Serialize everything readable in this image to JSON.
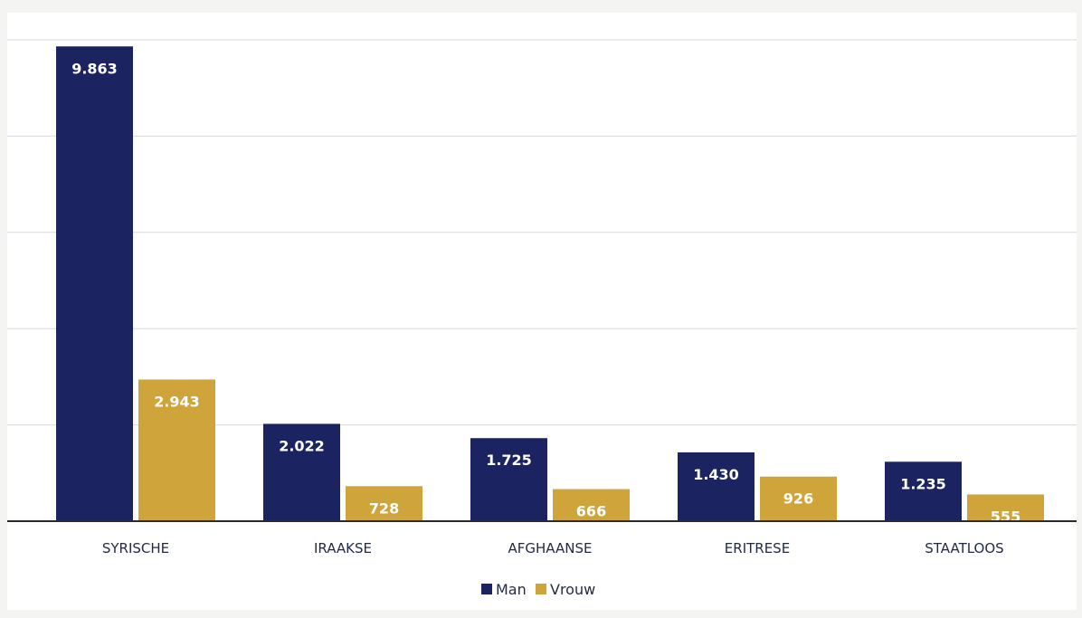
{
  "chart_data": {
    "type": "bar",
    "categories": [
      "SYRISCHE",
      "IRAAKSE",
      "AFGHAANSE",
      "ERITRESE",
      "STAATLOOS"
    ],
    "series": [
      {
        "name": "Man",
        "values": [
          9863,
          2022,
          1725,
          1430,
          1235
        ],
        "labels": [
          "9.863",
          "2.022",
          "1.725",
          "1.430",
          "1.235"
        ],
        "color": "#1b2460"
      },
      {
        "name": "Vrouw",
        "values": [
          2943,
          728,
          666,
          926,
          555
        ],
        "labels": [
          "2.943",
          "728",
          "666",
          "926",
          "555"
        ],
        "color": "#cfa43a"
      }
    ],
    "ylim": [
      0,
      10000
    ],
    "gridlines": [
      2000,
      4000,
      6000,
      8000,
      10000
    ],
    "grid": true,
    "legend": "bottom-center"
  }
}
